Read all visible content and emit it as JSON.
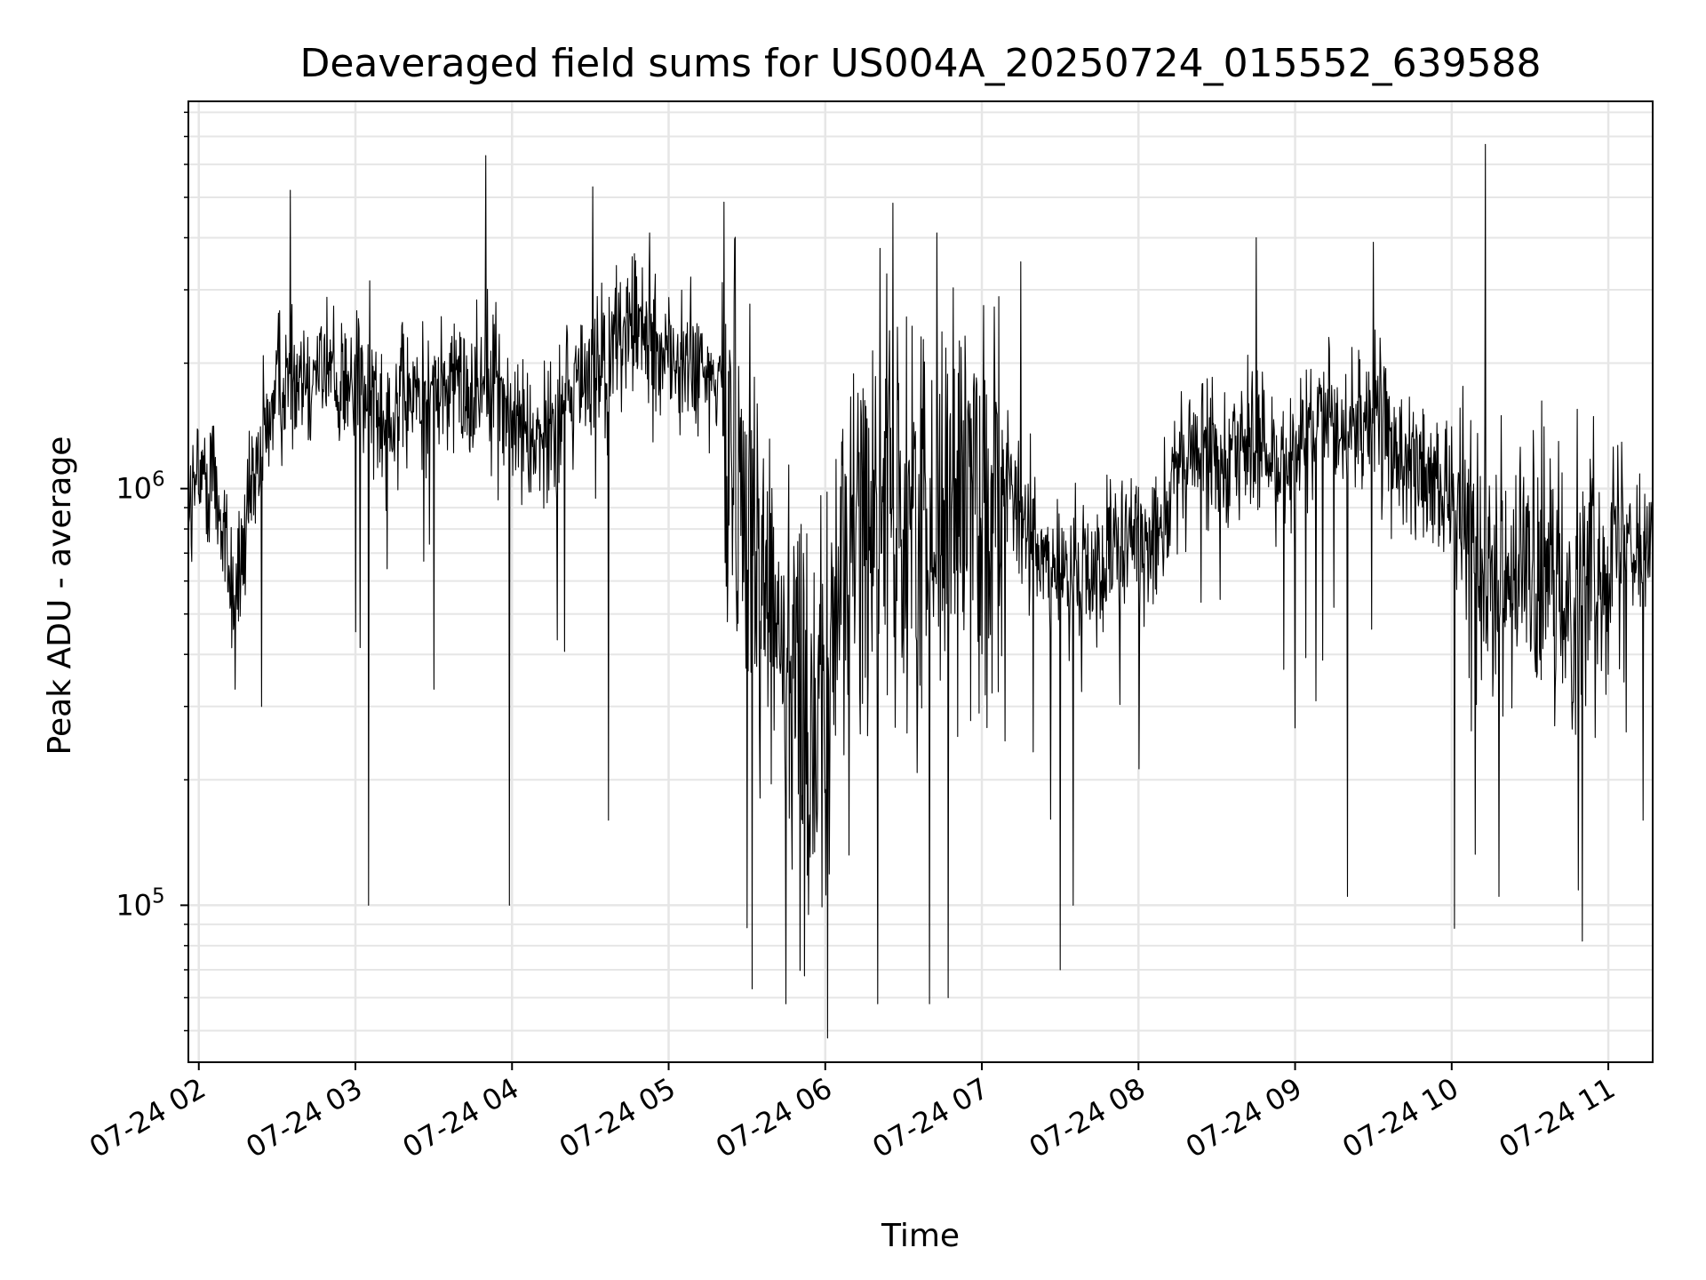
{
  "chart_data": {
    "type": "line",
    "title": "Deaveraged field sums for US004A_20250724_015552_639588",
    "xlabel": "Time",
    "ylabel": "Peak ADU - average",
    "xscale": "time",
    "yscale": "log",
    "xlim": [
      "2025-07-24T01:56",
      "2025-07-24T11:17"
    ],
    "ylim": [
      42000,
      8500000
    ],
    "grid": true,
    "legend": "none",
    "line_color": "#000000",
    "grid_color": "#e6e6e6",
    "x_tick_labels": [
      "07-24 02",
      "07-24 03",
      "07-24 04",
      "07-24 05",
      "07-24 06",
      "07-24 07",
      "07-24 08",
      "07-24 09",
      "07-24 10",
      "07-24 11"
    ],
    "x_tick_values": [
      "2025-07-24T02:00",
      "2025-07-24T03:00",
      "2025-07-24T04:00",
      "2025-07-24T05:00",
      "2025-07-24T06:00",
      "2025-07-24T07:00",
      "2025-07-24T08:00",
      "2025-07-24T09:00",
      "2025-07-24T10:00",
      "2025-07-24T11:00"
    ],
    "y_major_ticks": [
      {
        "value": 100000,
        "base": "10",
        "exp": "5"
      },
      {
        "value": 1000000,
        "base": "10",
        "exp": "6"
      }
    ],
    "y_minor_ticks": [
      50000,
      60000,
      70000,
      80000,
      90000,
      200000,
      300000,
      400000,
      500000,
      600000,
      700000,
      800000,
      900000,
      2000000,
      3000000,
      4000000,
      5000000,
      6000000,
      7000000,
      8000000
    ],
    "series": [
      {
        "x": [
          "2025-07-24T01:56",
          "2025-07-24T02:05",
          "2025-07-24T02:10",
          "2025-07-24T02:13",
          "2025-07-24T02:17",
          "2025-07-24T02:25",
          "2025-07-24T02:30",
          "2025-07-24T02:45",
          "2025-07-24T03:02",
          "2025-07-24T03:15",
          "2025-07-24T03:30",
          "2025-07-24T03:45",
          "2025-07-24T03:52",
          "2025-07-24T03:58",
          "2025-07-24T04:10",
          "2025-07-24T04:25",
          "2025-07-24T04:38",
          "2025-07-24T04:45",
          "2025-07-24T05:00",
          "2025-07-24T05:15",
          "2025-07-24T05:22",
          "2025-07-24T05:30",
          "2025-07-24T05:45",
          "2025-07-24T05:52",
          "2025-07-24T06:00",
          "2025-07-24T06:05",
          "2025-07-24T06:15",
          "2025-07-24T06:25",
          "2025-07-24T06:30",
          "2025-07-24T06:40",
          "2025-07-24T06:55",
          "2025-07-24T07:05",
          "2025-07-24T07:15",
          "2025-07-24T07:30",
          "2025-07-24T07:45",
          "2025-07-24T08:00",
          "2025-07-24T08:10",
          "2025-07-24T08:20",
          "2025-07-24T08:40",
          "2025-07-24T08:55",
          "2025-07-24T09:10",
          "2025-07-24T09:30",
          "2025-07-24T09:45",
          "2025-07-24T10:00",
          "2025-07-24T10:15",
          "2025-07-24T10:30",
          "2025-07-24T10:45",
          "2025-07-24T10:55",
          "2025-07-24T11:05",
          "2025-07-24T11:17"
        ],
        "y": [
          900000,
          1150000,
          750000,
          550000,
          700000,
          1300000,
          1800000,
          2000000,
          1700000,
          1550000,
          1700000,
          1750000,
          2000000,
          1500000,
          1300000,
          1800000,
          2100000,
          2500000,
          2100000,
          1800000,
          1700000,
          900000,
          400000,
          300000,
          250000,
          600000,
          900000,
          1000000,
          800000,
          900000,
          1050000,
          1100000,
          850000,
          600000,
          650000,
          750000,
          900000,
          1200000,
          1300000,
          1150000,
          1350000,
          1500000,
          1100000,
          950000,
          700000,
          600000,
          550000,
          650000,
          850000,
          700000
        ]
      }
    ],
    "highs": [
      {
        "x": "2025-07-24T02:35",
        "y": 5200000
      },
      {
        "x": "2025-07-24T03:50",
        "y": 6300000
      },
      {
        "x": "2025-07-24T04:31",
        "y": 5300000
      },
      {
        "x": "2025-07-24T07:15",
        "y": 3500000
      },
      {
        "x": "2025-07-24T08:45",
        "y": 4000000
      },
      {
        "x": "2025-07-24T09:30",
        "y": 3900000
      },
      {
        "x": "2025-07-24T10:13",
        "y": 6700000
      },
      {
        "x": "2025-07-24T10:48",
        "y": 1550000
      }
    ],
    "lows": [
      {
        "x": "2025-07-24T02:14",
        "y": 330000
      },
      {
        "x": "2025-07-24T02:24",
        "y": 300000
      },
      {
        "x": "2025-07-24T03:05",
        "y": 100000
      },
      {
        "x": "2025-07-24T03:30",
        "y": 330000
      },
      {
        "x": "2025-07-24T03:59",
        "y": 100000
      },
      {
        "x": "2025-07-24T04:37",
        "y": 160000
      },
      {
        "x": "2025-07-24T05:32",
        "y": 63000
      },
      {
        "x": "2025-07-24T05:45",
        "y": 58000
      },
      {
        "x": "2025-07-24T06:01",
        "y": 48000
      },
      {
        "x": "2025-07-24T06:20",
        "y": 58000
      },
      {
        "x": "2025-07-24T06:40",
        "y": 58000
      },
      {
        "x": "2025-07-24T06:47",
        "y": 60000
      },
      {
        "x": "2025-07-24T07:30",
        "y": 70000
      },
      {
        "x": "2025-07-24T07:35",
        "y": 100000
      },
      {
        "x": "2025-07-24T09:20",
        "y": 105000
      },
      {
        "x": "2025-07-24T10:01",
        "y": 88000
      },
      {
        "x": "2025-07-24T10:18",
        "y": 105000
      },
      {
        "x": "2025-07-24T10:50",
        "y": 82000
      }
    ]
  }
}
